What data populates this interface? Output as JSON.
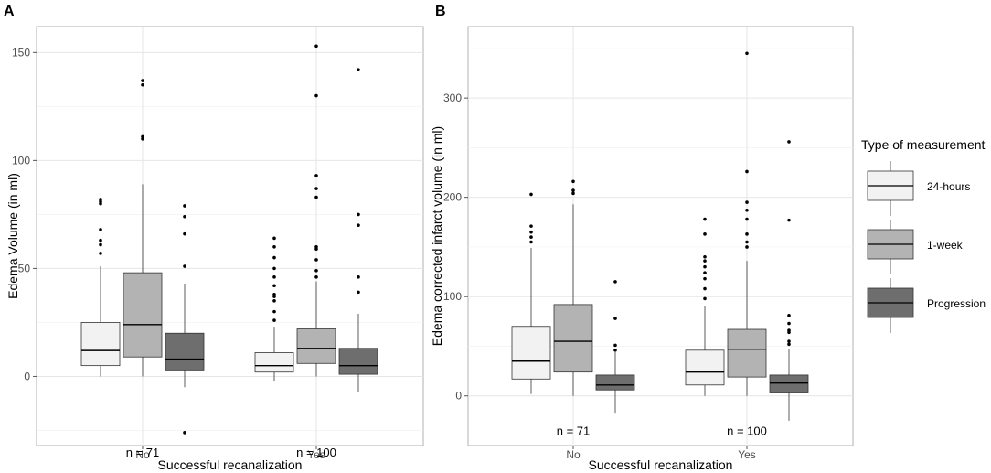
{
  "figure": {
    "legend": {
      "title": "Type of measurement",
      "entries": [
        {
          "name": "24-hours",
          "color": "#f2f2f2"
        },
        {
          "name": "1-week",
          "color": "#b3b3b3"
        },
        {
          "name": "Progression",
          "color": "#6e6e6e"
        }
      ]
    }
  },
  "chart_data": [
    {
      "type": "boxplot",
      "panel_label": "A",
      "xlabel": "Successful recanalization",
      "ylabel": "Edema Volume (in ml)",
      "ylim": [
        -32,
        162
      ],
      "yticks": [
        0,
        50,
        100,
        150
      ],
      "grid": true,
      "categories": [
        "No",
        "Yes"
      ],
      "annotations": [
        {
          "category": "No",
          "text": "n = 71",
          "y": -35
        },
        {
          "category": "Yes",
          "text": "n = 100",
          "y": -35
        }
      ],
      "series": [
        {
          "name": "24-hours",
          "boxes": [
            {
              "category": "No",
              "min": 0,
              "q1": 5,
              "median": 12,
              "q3": 25,
              "max": 51,
              "outliers": [
                57,
                61,
                63,
                68,
                80,
                81,
                82
              ]
            },
            {
              "category": "Yes",
              "min": -2,
              "q1": 2,
              "median": 5,
              "q3": 11,
              "max": 23,
              "outliers": [
                26,
                30,
                35,
                37,
                38,
                42,
                46,
                50,
                55,
                60,
                64
              ]
            }
          ]
        },
        {
          "name": "1-week",
          "boxes": [
            {
              "category": "No",
              "min": 0,
              "q1": 9,
              "median": 24,
              "q3": 48,
              "max": 89,
              "outliers": [
                110,
                111,
                135,
                137
              ]
            },
            {
              "category": "Yes",
              "min": 0,
              "q1": 6,
              "median": 13,
              "q3": 22,
              "max": 44,
              "outliers": [
                46,
                49,
                54,
                59,
                60,
                83,
                87,
                93,
                130,
                153
              ]
            }
          ]
        },
        {
          "name": "Progression",
          "boxes": [
            {
              "category": "No",
              "min": -5,
              "q1": 3,
              "median": 8,
              "q3": 20,
              "max": 43,
              "outliers": [
                -26,
                51,
                66,
                74,
                79
              ]
            },
            {
              "category": "Yes",
              "min": -7,
              "q1": 1,
              "median": 5,
              "q3": 13,
              "max": 29,
              "outliers": [
                39,
                46,
                70,
                75,
                142
              ]
            }
          ]
        }
      ]
    },
    {
      "type": "boxplot",
      "panel_label": "B",
      "xlabel": "Successful recanalization",
      "ylabel": "Edema corrected infarct volume (in ml)",
      "ylim": [
        -50,
        372
      ],
      "yticks": [
        0,
        100,
        200,
        300
      ],
      "grid": true,
      "categories": [
        "No",
        "Yes"
      ],
      "annotations": [
        {
          "category": "No",
          "text": "n = 71",
          "y": -35
        },
        {
          "category": "Yes",
          "text": "n = 100",
          "y": -35
        }
      ],
      "series": [
        {
          "name": "24-hours",
          "boxes": [
            {
              "category": "No",
              "min": 2,
              "q1": 17,
              "median": 35,
              "q3": 70,
              "max": 149,
              "outliers": [
                155,
                160,
                165,
                171,
                203
              ]
            },
            {
              "category": "Yes",
              "min": 0,
              "q1": 11,
              "median": 24,
              "q3": 46,
              "max": 91,
              "outliers": [
                98,
                108,
                118,
                124,
                130,
                136,
                140,
                163,
                178
              ]
            }
          ]
        },
        {
          "name": "1-week",
          "boxes": [
            {
              "category": "No",
              "min": 0,
              "q1": 24,
              "median": 55,
              "q3": 92,
              "max": 193,
              "outliers": [
                204,
                207,
                216
              ]
            },
            {
              "category": "Yes",
              "min": 0,
              "q1": 19,
              "median": 47,
              "q3": 67,
              "max": 136,
              "outliers": [
                150,
                155,
                163,
                178,
                187,
                195,
                226,
                345
              ]
            }
          ]
        },
        {
          "name": "Progression",
          "boxes": [
            {
              "category": "No",
              "min": -17,
              "q1": 6,
              "median": 11,
              "q3": 21,
              "max": 44,
              "outliers": [
                46,
                51,
                78,
                115
              ]
            },
            {
              "category": "Yes",
              "min": -25,
              "q1": 3,
              "median": 13,
              "q3": 21,
              "max": 47,
              "outliers": [
                52,
                55,
                64,
                66,
                73,
                81,
                177,
                256
              ]
            }
          ]
        }
      ]
    }
  ]
}
